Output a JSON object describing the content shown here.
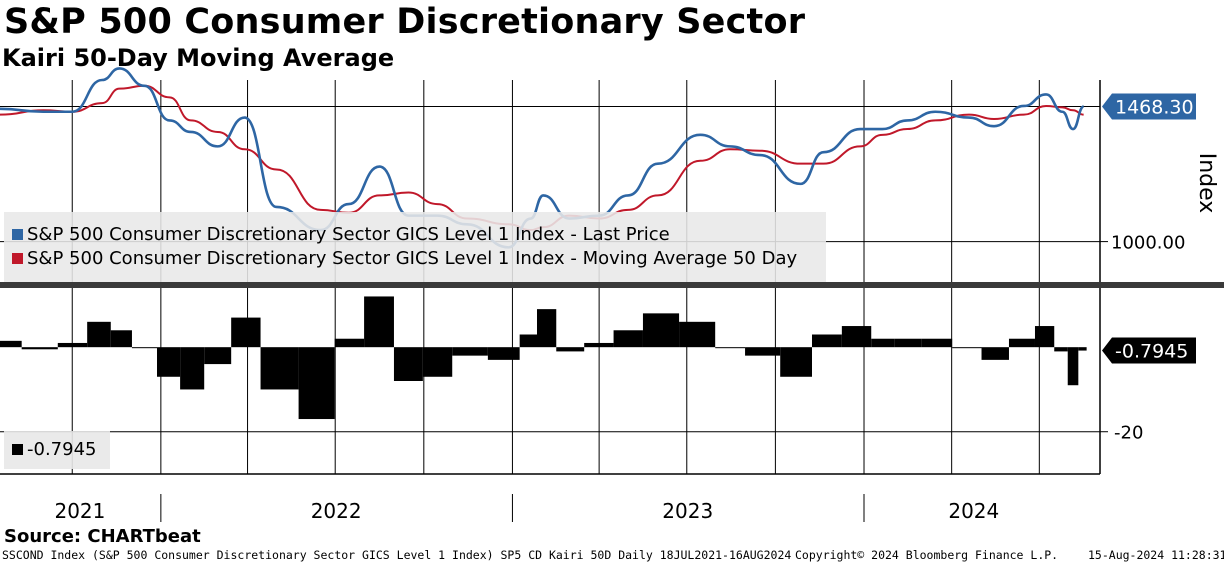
{
  "header": {
    "title": "S&P 500 Consumer Discretionary Sector",
    "subtitle": "Kairi 50-Day Moving Average"
  },
  "colors": {
    "price": "#2e66a4",
    "ma": "#c0182a",
    "kairi": "#000000"
  },
  "chart_data": [
    {
      "type": "line",
      "ylabel": "Index",
      "ylim": [
        860,
        1560
      ],
      "y_ticks": [
        {
          "value": 1000,
          "label": "1000.00"
        }
      ],
      "last_value_label": "1468.30",
      "last_value": 1468.3,
      "legend": [
        "S&P 500 Consumer Discretionary Sector GICS Level 1 Index - Last Price",
        "S&P 500 Consumer Discretionary Sector GICS Level 1 Index - Moving Average 50 Day"
      ],
      "x": [
        "2021-07-18",
        "2021-09-01",
        "2021-10-01",
        "2021-11-01",
        "2021-11-19",
        "2021-12-15",
        "2022-01-10",
        "2022-02-01",
        "2022-03-01",
        "2022-03-29",
        "2022-05-01",
        "2022-06-16",
        "2022-07-15",
        "2022-08-16",
        "2022-09-15",
        "2022-10-15",
        "2022-11-15",
        "2022-12-28",
        "2023-01-20",
        "2023-02-02",
        "2023-03-01",
        "2023-04-01",
        "2023-05-01",
        "2023-06-01",
        "2023-07-15",
        "2023-08-15",
        "2023-09-15",
        "2023-10-27",
        "2023-11-20",
        "2023-12-28",
        "2024-01-20",
        "2024-02-15",
        "2024-03-15",
        "2024-04-19",
        "2024-05-15",
        "2024-06-15",
        "2024-07-08",
        "2024-07-25",
        "2024-08-05",
        "2024-08-16"
      ],
      "series": [
        {
          "name": "S&P 500 Consumer Discretionary Sector GICS Level 1 Index - Last Price",
          "values": [
            1460,
            1450,
            1450,
            1560,
            1600,
            1540,
            1420,
            1380,
            1330,
            1430,
            1120,
            1040,
            1130,
            1260,
            1090,
            1090,
            1060,
            980,
            1080,
            1160,
            1080,
            1090,
            1160,
            1270,
            1370,
            1330,
            1300,
            1200,
            1310,
            1390,
            1390,
            1420,
            1450,
            1430,
            1400,
            1470,
            1510,
            1450,
            1390,
            1468
          ]
        },
        {
          "name": "S&P 500 Consumer Discretionary Sector GICS Level 1 Index - Moving Average 50 Day",
          "values": [
            1440,
            1455,
            1450,
            1480,
            1530,
            1540,
            1500,
            1420,
            1380,
            1320,
            1250,
            1110,
            1100,
            1160,
            1170,
            1130,
            1080,
            1060,
            1040,
            1050,
            1090,
            1080,
            1110,
            1160,
            1280,
            1320,
            1315,
            1270,
            1270,
            1330,
            1370,
            1390,
            1420,
            1440,
            1425,
            1440,
            1470,
            1465,
            1455,
            1440
          ]
        }
      ]
    },
    {
      "type": "bar",
      "ylim": [
        -30,
        14
      ],
      "y_ticks": [
        {
          "value": -20,
          "label": "-20"
        }
      ],
      "last_value_label": "-0.7945",
      "last_value": -0.7945,
      "legend": [
        "-0.7945"
      ],
      "x": [
        "2021-07-18",
        "2021-09-01",
        "2021-10-01",
        "2021-11-01",
        "2021-11-19",
        "2021-12-15",
        "2022-01-10",
        "2022-02-01",
        "2022-03-01",
        "2022-03-29",
        "2022-05-01",
        "2022-06-16",
        "2022-07-15",
        "2022-08-16",
        "2022-09-15",
        "2022-10-15",
        "2022-11-15",
        "2022-12-28",
        "2023-01-20",
        "2023-02-02",
        "2023-03-01",
        "2023-04-01",
        "2023-05-01",
        "2023-06-01",
        "2023-07-15",
        "2023-08-15",
        "2023-09-15",
        "2023-10-27",
        "2023-11-20",
        "2023-12-28",
        "2024-01-20",
        "2024-02-15",
        "2024-03-15",
        "2024-04-19",
        "2024-05-15",
        "2024-06-15",
        "2024-07-08",
        "2024-07-25",
        "2024-08-05",
        "2024-08-16"
      ],
      "values": [
        1.5,
        -0.5,
        1,
        6,
        4,
        0,
        -7,
        -10,
        -4,
        7,
        -10,
        -17,
        2,
        12,
        -8,
        -7,
        -2,
        -3,
        3,
        9,
        -1,
        1,
        4,
        8,
        6,
        0,
        -2,
        -7,
        3,
        5,
        2,
        2,
        2,
        0,
        -3,
        2,
        5,
        -1,
        -9,
        -0.8
      ]
    }
  ],
  "x_axis": {
    "years": [
      {
        "label": "2021",
        "date": "2021-07-18",
        "end": "2021-12-31"
      },
      {
        "label": "2022",
        "date": "2022-01-01",
        "end": "2022-12-31"
      },
      {
        "label": "2023",
        "date": "2023-01-01",
        "end": "2023-12-31"
      },
      {
        "label": "2024",
        "date": "2024-01-01",
        "end": "2024-08-16"
      }
    ],
    "quarters": [
      "2021-10-01",
      "2022-01-01",
      "2022-04-01",
      "2022-07-01",
      "2022-10-01",
      "2023-01-01",
      "2023-04-01",
      "2023-07-01",
      "2023-10-01",
      "2024-01-01",
      "2024-04-01",
      "2024-07-01"
    ]
  },
  "source": "Source: CHARTbeat",
  "footer": {
    "left": "SSCOND Index (S&P 500 Consumer Discretionary Sector GICS Level 1 Index) SP5 CD Kairi 50D  Daily 18JUL2021-16AUG2024",
    "mid": "Copyright© 2024 Bloomberg Finance L.P.",
    "right": "15-Aug-2024 11:28:31"
  }
}
